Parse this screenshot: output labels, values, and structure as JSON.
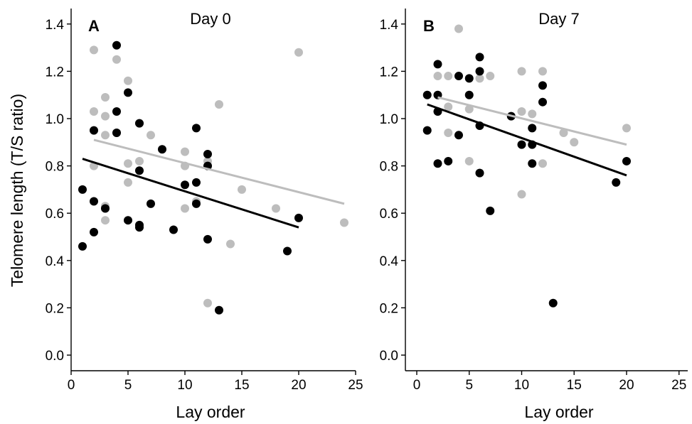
{
  "figure": {
    "ylabel": "Telomere length (T/S ratio)",
    "xlabel": "Lay order"
  },
  "colors": {
    "grey": "#bdbdbd",
    "black": "#000000"
  },
  "chart_data": [
    {
      "type": "scatter",
      "panel_letter": "A",
      "title": "Day 0",
      "xlabel": "Lay order",
      "ylabel": "Telomere length (T/S ratio)",
      "xlim": [
        0,
        25
      ],
      "ylim": [
        0,
        1.4
      ],
      "xticks": [
        "0",
        "5",
        "10",
        "15",
        "20",
        "25"
      ],
      "yticks": [
        "0.0",
        "0.2",
        "0.4",
        "0.6",
        "0.8",
        "1.0",
        "1.2",
        "1.4"
      ],
      "grid": false,
      "series": [
        {
          "color": "#bdbdbd",
          "points": [
            [
              2,
              1.29
            ],
            [
              2,
              1.03
            ],
            [
              2,
              0.8
            ],
            [
              3,
              1.09
            ],
            [
              3,
              1.01
            ],
            [
              3,
              0.93
            ],
            [
              3,
              0.63
            ],
            [
              3,
              0.62
            ],
            [
              3,
              0.57
            ],
            [
              4,
              1.25
            ],
            [
              4,
              0.94
            ],
            [
              5,
              1.16
            ],
            [
              5,
              0.81
            ],
            [
              5,
              0.73
            ],
            [
              6,
              0.98
            ],
            [
              6,
              0.82
            ],
            [
              7,
              0.93
            ],
            [
              10,
              0.86
            ],
            [
              10,
              0.8
            ],
            [
              10,
              0.62
            ],
            [
              11,
              0.65
            ],
            [
              12,
              0.82
            ],
            [
              12,
              0.8
            ],
            [
              12,
              0.22
            ],
            [
              13,
              1.06
            ],
            [
              14,
              0.47
            ],
            [
              15,
              0.7
            ],
            [
              18,
              0.62
            ],
            [
              20,
              1.28
            ],
            [
              24,
              0.56
            ]
          ],
          "trend": [
            [
              2,
              0.91
            ],
            [
              24,
              0.64
            ]
          ]
        },
        {
          "color": "#000000",
          "points": [
            [
              1,
              0.7
            ],
            [
              1,
              0.46
            ],
            [
              2,
              0.95
            ],
            [
              2,
              0.65
            ],
            [
              2,
              0.52
            ],
            [
              3,
              0.62
            ],
            [
              4,
              1.31
            ],
            [
              4,
              1.03
            ],
            [
              4,
              0.94
            ],
            [
              5,
              1.11
            ],
            [
              5,
              0.57
            ],
            [
              6,
              0.98
            ],
            [
              6,
              0.78
            ],
            [
              6,
              0.55
            ],
            [
              6,
              0.54
            ],
            [
              7,
              0.64
            ],
            [
              8,
              0.87
            ],
            [
              9,
              0.53
            ],
            [
              10,
              0.72
            ],
            [
              11,
              0.96
            ],
            [
              11,
              0.73
            ],
            [
              11,
              0.64
            ],
            [
              12,
              0.85
            ],
            [
              12,
              0.8
            ],
            [
              12,
              0.49
            ],
            [
              13,
              0.19
            ],
            [
              19,
              0.44
            ],
            [
              20,
              0.58
            ]
          ],
          "trend": [
            [
              1,
              0.83
            ],
            [
              20,
              0.54
            ]
          ]
        }
      ]
    },
    {
      "type": "scatter",
      "panel_letter": "B",
      "title": "Day 7",
      "xlabel": "Lay order",
      "ylabel": "",
      "xlim": [
        0,
        25
      ],
      "ylim": [
        0,
        1.4
      ],
      "xticks": [
        "0",
        "5",
        "10",
        "15",
        "20",
        "25"
      ],
      "yticks": [
        "0.0",
        "0.2",
        "0.4",
        "0.6",
        "0.8",
        "1.0",
        "1.2",
        "1.4"
      ],
      "grid": false,
      "series": [
        {
          "color": "#bdbdbd",
          "points": [
            [
              2,
              1.18
            ],
            [
              3,
              1.18
            ],
            [
              3,
              1.05
            ],
            [
              3,
              0.94
            ],
            [
              4,
              1.38
            ],
            [
              5,
              1.04
            ],
            [
              5,
              0.82
            ],
            [
              6,
              1.17
            ],
            [
              6,
              0.77
            ],
            [
              7,
              1.18
            ],
            [
              10,
              1.2
            ],
            [
              10,
              1.03
            ],
            [
              10,
              0.68
            ],
            [
              11,
              1.02
            ],
            [
              12,
              1.2
            ],
            [
              12,
              0.81
            ],
            [
              14,
              0.94
            ],
            [
              15,
              0.9
            ],
            [
              20,
              0.96
            ]
          ],
          "trend": [
            [
              2,
              1.09
            ],
            [
              20,
              0.89
            ]
          ]
        },
        {
          "color": "#000000",
          "points": [
            [
              1,
              1.1
            ],
            [
              1,
              0.95
            ],
            [
              2,
              1.23
            ],
            [
              2,
              1.1
            ],
            [
              2,
              1.03
            ],
            [
              2,
              0.81
            ],
            [
              3,
              0.82
            ],
            [
              4,
              1.18
            ],
            [
              4,
              0.93
            ],
            [
              5,
              1.17
            ],
            [
              5,
              1.1
            ],
            [
              6,
              1.26
            ],
            [
              6,
              1.2
            ],
            [
              6,
              0.97
            ],
            [
              6,
              0.77
            ],
            [
              7,
              0.61
            ],
            [
              9,
              1.01
            ],
            [
              10,
              0.89
            ],
            [
              11,
              0.96
            ],
            [
              11,
              0.89
            ],
            [
              11,
              0.81
            ],
            [
              12,
              1.14
            ],
            [
              12,
              1.07
            ],
            [
              13,
              0.22
            ],
            [
              19,
              0.73
            ],
            [
              20,
              0.82
            ]
          ],
          "trend": [
            [
              1,
              1.06
            ],
            [
              20,
              0.76
            ]
          ]
        }
      ]
    }
  ]
}
